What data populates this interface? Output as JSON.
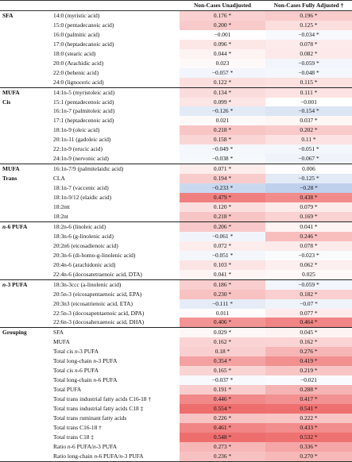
{
  "header": {
    "col_group": "",
    "col_fa": "",
    "col_unadj": "Non-Cases Unadjusted",
    "col_adj": "Non-Cases Fully Adjusted †"
  },
  "colors": {
    "neg_strong": "#7fa1d8",
    "pos_strong": "#ee6b6b",
    "neutral": "#ffffff"
  },
  "rows": [
    {
      "group": "SFA",
      "fa": "14:0 (myristic acid)",
      "u": "0.176 *",
      "a": "0.196 *",
      "uv": 0.176,
      "av": 0.196,
      "sep": true
    },
    {
      "group": "",
      "fa": "15:0 (pentadecanoic acid)",
      "u": "0.200 *",
      "a": "0.125 *",
      "uv": 0.2,
      "av": 0.125
    },
    {
      "group": "",
      "fa": "16:0 (palmitic acid)",
      "u": "−0.001",
      "a": "−0.034 *",
      "uv": -0.001,
      "av": -0.034
    },
    {
      "group": "",
      "fa": "17:0 (heptadecanoic acid)",
      "u": "0.096 *",
      "a": "0.078 *",
      "uv": 0.096,
      "av": 0.078
    },
    {
      "group": "",
      "fa": "18:0 (stearic acid)",
      "u": "0.044 *",
      "a": "0.082 *",
      "uv": 0.044,
      "av": 0.082
    },
    {
      "group": "",
      "fa": "20:0 (Arachidic acid)",
      "u": "0.023",
      "a": "−0.059 *",
      "uv": 0.023,
      "av": -0.059
    },
    {
      "group": "",
      "fa": "22:0 (behenic acid)",
      "u": "−0.057 *",
      "a": "−0.048 *",
      "uv": -0.057,
      "av": -0.048
    },
    {
      "group": "",
      "fa": "24:0 (lignoceric acid)",
      "u": "0.122 *",
      "a": "0.115 *",
      "uv": 0.122,
      "av": 0.115
    },
    {
      "group": "MUFA",
      "fa": "14:1n-5 (myristoleic acid)",
      "u": "0.134 *",
      "a": "0.111 *",
      "uv": 0.134,
      "av": 0.111,
      "sep": true
    },
    {
      "group": "Cis",
      "fa": "15:1 (pentadecenoic acid)",
      "u": "0.099 *",
      "a": "−0.001",
      "uv": 0.099,
      "av": -0.001
    },
    {
      "group": "",
      "fa": "16:1n-7 (palmitoleic acid)",
      "u": "−0.126 *",
      "a": "−0.154 *",
      "uv": -0.126,
      "av": -0.154
    },
    {
      "group": "",
      "fa": "17:1 (heptadecenoic acid)",
      "u": "0.021",
      "a": "0.037 *",
      "uv": 0.021,
      "av": 0.037
    },
    {
      "group": "",
      "fa": "18:1n-9 (oleic acid)",
      "u": "0.218 *",
      "a": "0.202 *",
      "uv": 0.218,
      "av": 0.202
    },
    {
      "group": "",
      "fa": "20:1n-11 (gadoleic acid)",
      "u": "0.158 *",
      "a": "0.11 *",
      "uv": 0.158,
      "av": 0.11
    },
    {
      "group": "",
      "fa": "22:1n-9 (erucic acid)",
      "u": "−0.049 *",
      "a": "−0.051 *",
      "uv": -0.049,
      "av": -0.051
    },
    {
      "group": "",
      "fa": "24:1n-9 (nervonic acid)",
      "u": "−0.038 *",
      "a": "−0.067 *",
      "uv": -0.038,
      "av": -0.067
    },
    {
      "group": "MUFA",
      "fa": "16:1n-7/9 (palmitelaidic acid)",
      "u": "0.071 *",
      "a": "0.006",
      "uv": 0.071,
      "av": 0.006,
      "sep": true
    },
    {
      "group": "Trans",
      "fa": "CLA",
      "u": "0.194 *",
      "a": "−0.125 *",
      "uv": 0.194,
      "av": -0.125
    },
    {
      "group": "",
      "fa": "18:1n-7 (vaccenic acid)",
      "u": "−0.233 *",
      "a": "−0.28 *",
      "uv": -0.233,
      "av": -0.28
    },
    {
      "group": "",
      "fa": "18:1n-9/12 (elaidic acid)",
      "u": "0.479 *",
      "a": "0.438 *",
      "uv": 0.479,
      "av": 0.438
    },
    {
      "group": "",
      "fa": "18:2ntt",
      "u": "0.120 *",
      "a": "0.079 *",
      "uv": 0.12,
      "av": 0.079
    },
    {
      "group": "",
      "fa": "18:2nt",
      "u": "0.218 *",
      "a": "0.169 *",
      "uv": 0.218,
      "av": 0.169
    },
    {
      "group": "n-6 PUFA",
      "fa": "18:2n-6 (linoleic acid)",
      "u": "0.206 *",
      "a": "0.041 *",
      "uv": 0.206,
      "av": 0.041,
      "sep": true
    },
    {
      "group": "",
      "fa": "18:3n-6 (g-linolenic acid)",
      "u": "−0.061 *",
      "a": "0.246 *",
      "uv": -0.061,
      "av": 0.246
    },
    {
      "group": "",
      "fa": "20:2n6 (eicosadienoic acid)",
      "u": "0.072 *",
      "a": "0.078 *",
      "uv": 0.072,
      "av": 0.078
    },
    {
      "group": "",
      "fa": "20:3n-6 (di-homo-g-linolenic acid)",
      "u": "−0.051 *",
      "a": "−0.023 *",
      "uv": -0.051,
      "av": -0.023
    },
    {
      "group": "",
      "fa": "20:4n-6 (arachidonic acid)",
      "u": "0.103 *",
      "a": "0.062 *",
      "uv": 0.103,
      "av": 0.062
    },
    {
      "group": "",
      "fa": "22:4n-6 (docosatetraenoic acid, DTA)",
      "u": "0.041 *",
      "a": "0.025",
      "uv": 0.041,
      "av": 0.025
    },
    {
      "group": "n-3 PUFA",
      "fa": "18:3n-3ccc (a-linolenic acid)",
      "u": "0.186 *",
      "a": "−0.059 *",
      "uv": 0.186,
      "av": -0.059,
      "sep": true
    },
    {
      "group": "",
      "fa": "20:5n-3 (eicosapentaenoic acid, EPA)",
      "u": "0.230 *",
      "a": "0.182 *",
      "uv": 0.23,
      "av": 0.182
    },
    {
      "group": "",
      "fa": "20:3n3 (eicosatrienoic acid, ETA)",
      "u": "−0.111 *",
      "a": "−0.07 *",
      "uv": -0.111,
      "av": -0.07
    },
    {
      "group": "",
      "fa": "22:5n-3 (docosapentaenoic acid, DPA)",
      "u": "0.011",
      "a": "0.077 *",
      "uv": 0.011,
      "av": 0.077
    },
    {
      "group": "",
      "fa": "22:6n-3 (docosahexaenoic acid, DHA)",
      "u": "0.406 *",
      "a": "0.464 *",
      "uv": 0.406,
      "av": 0.464
    },
    {
      "group": "Grouping",
      "fa": "SFA",
      "u": "0.029 *",
      "a": "0.045 *",
      "uv": 0.029,
      "av": 0.045,
      "sep": true
    },
    {
      "group": "",
      "fa": "MUFA",
      "u": "0.162 *",
      "a": "0.162 *",
      "uv": 0.162,
      "av": 0.162
    },
    {
      "group": "",
      "fa": "Total cis n-3 PUFA",
      "u": "0.18 *",
      "a": "0.276 *",
      "uv": 0.18,
      "av": 0.276
    },
    {
      "group": "",
      "fa": "Total long-chain n-3 PUFA",
      "u": "0.354 *",
      "a": "0.419 *",
      "uv": 0.354,
      "av": 0.419
    },
    {
      "group": "",
      "fa": "Total cis n-6 PUFA",
      "u": "0.165 *",
      "a": "0.219 *",
      "uv": 0.165,
      "av": 0.219
    },
    {
      "group": "",
      "fa": "Total long-chain n-6 PUFA",
      "u": "−0.037 *",
      "a": "−0.021",
      "uv": -0.037,
      "av": -0.021
    },
    {
      "group": "",
      "fa": "Total PUFA",
      "u": "0.191 *",
      "a": "0.288 *",
      "uv": 0.191,
      "av": 0.288
    },
    {
      "group": "",
      "fa": "Total trans industrial fatty acids C16-18 †",
      "u": "0.446 *",
      "a": "0.417 *",
      "uv": 0.446,
      "av": 0.417
    },
    {
      "group": "",
      "fa": "Total trans industrial fatty acids C18 ‡",
      "u": "0.554 *",
      "a": "0.541 *",
      "uv": 0.554,
      "av": 0.541
    },
    {
      "group": "",
      "fa": "Total trans ruminant fatty acids",
      "u": "0.226 *",
      "a": "0.222 *",
      "uv": 0.226,
      "av": 0.222
    },
    {
      "group": "",
      "fa": "Total trans C16-18 †",
      "u": "0.461 *",
      "a": "0.433 *",
      "uv": 0.461,
      "av": 0.433
    },
    {
      "group": "",
      "fa": "Total trans C18 ‡",
      "u": "0.548 *",
      "a": "0.532 *",
      "uv": 0.548,
      "av": 0.532
    },
    {
      "group": "",
      "fa": "Ratio n-6 PUFA/n-3 PUFA",
      "u": "0.273 *",
      "a": "0.336 *",
      "uv": 0.273,
      "av": 0.336
    },
    {
      "group": "",
      "fa": "Ratio long-chain n-6 PUFA/n-3 PUFA",
      "u": "0.236 *",
      "a": "0.270 *",
      "uv": 0.236,
      "av": 0.27
    }
  ]
}
